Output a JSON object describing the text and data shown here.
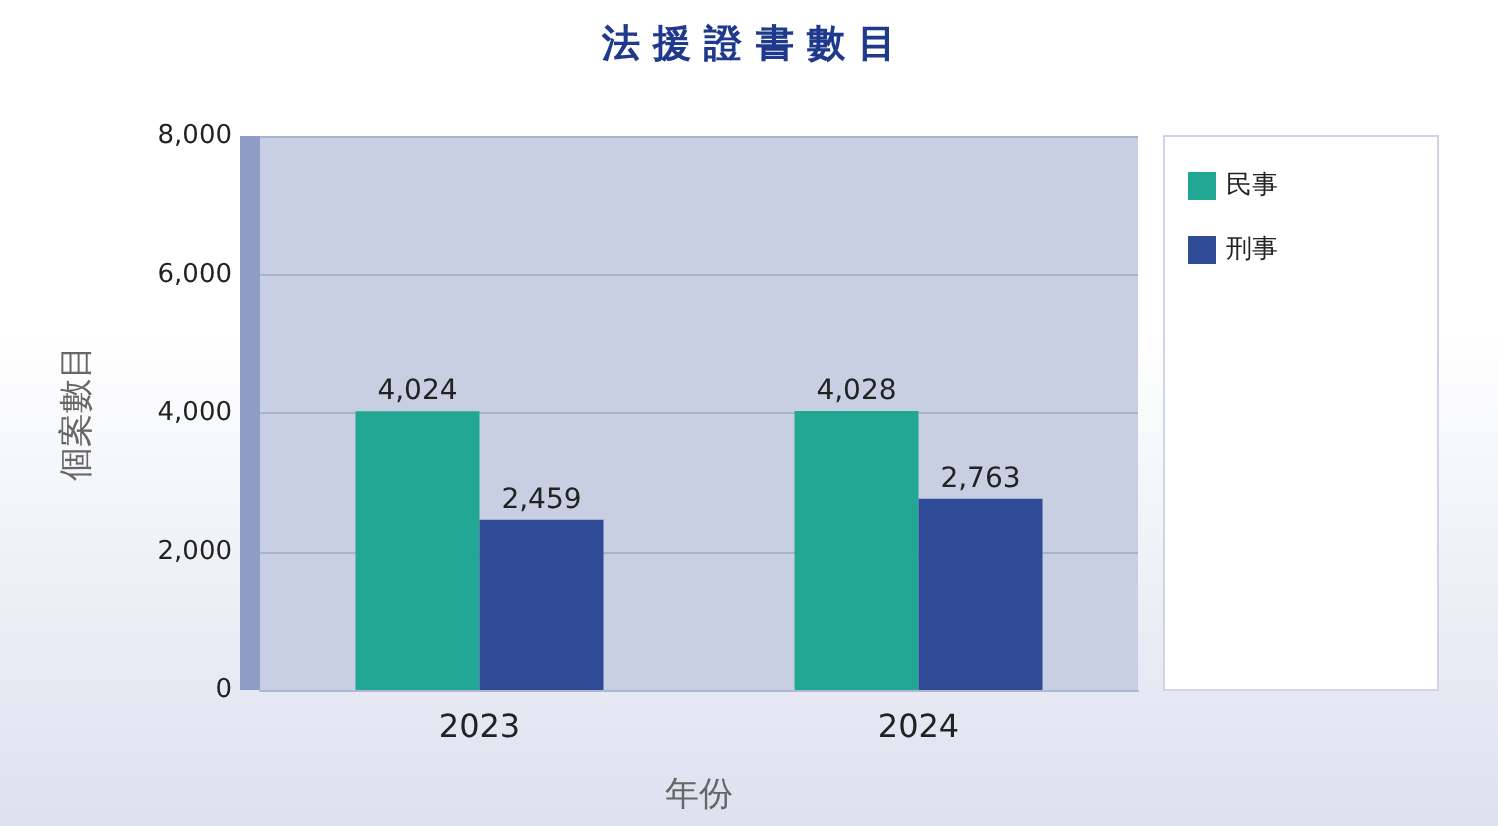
{
  "chart_data": {
    "type": "bar",
    "title": "法援證書數目",
    "xlabel": "年份",
    "ylabel": "個案數目",
    "categories": [
      "2023",
      "2024"
    ],
    "series": [
      {
        "name": "民事",
        "color": "#23a795",
        "values": [
          4024,
          4028
        ],
        "value_labels": [
          "4,024",
          "4,028"
        ]
      },
      {
        "name": "刑事",
        "color": "#304b95",
        "values": [
          2459,
          2763
        ],
        "value_labels": [
          "2,459",
          "2,763"
        ]
      }
    ],
    "ylim": [
      0,
      8000
    ],
    "yticks": [
      0,
      {
        "value": 2000,
        "label": "2,000"
      },
      {
        "value": 4000,
        "label": "4,000"
      },
      {
        "value": 6000,
        "label": "6,000"
      },
      {
        "value": 8000,
        "label": "8,000"
      }
    ],
    "grid": "y",
    "legend": "right"
  }
}
